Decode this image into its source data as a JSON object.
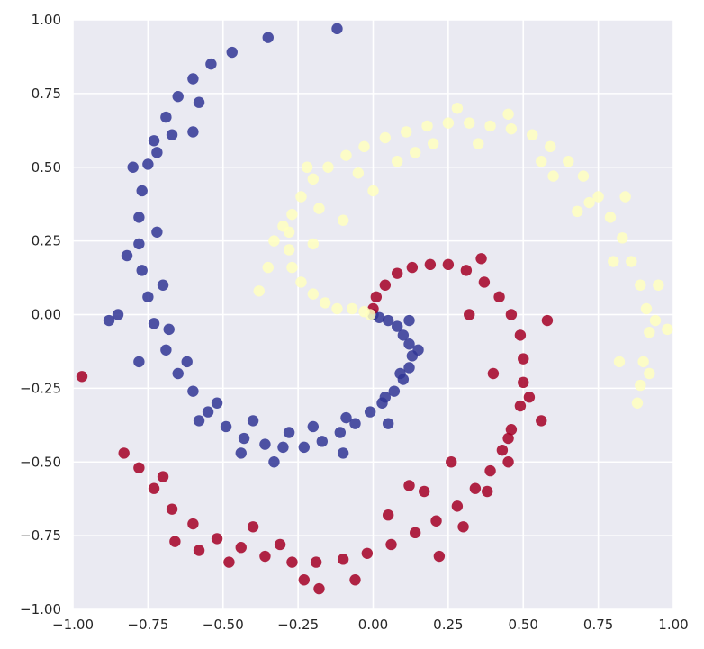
{
  "chart_data": {
    "type": "scatter",
    "title": "",
    "xlabel": "",
    "ylabel": "",
    "xlim": [
      -1.0,
      1.0
    ],
    "ylim": [
      -1.0,
      1.0
    ],
    "grid": true,
    "x_ticks": [
      "−1.00",
      "−0.75",
      "−0.50",
      "−0.25",
      "0.00",
      "0.25",
      "0.50",
      "0.75",
      "1.00"
    ],
    "y_ticks": [
      "1.00",
      "0.75",
      "0.50",
      "0.25",
      "0.00",
      "−0.25",
      "−0.50",
      "−0.75",
      "−1.00"
    ],
    "background_color": "#eaeaf2",
    "series": [
      {
        "color": "#313695",
        "points": [
          [
            0.0,
            0.0
          ],
          [
            0.02,
            -0.01
          ],
          [
            0.05,
            -0.02
          ],
          [
            0.08,
            -0.04
          ],
          [
            0.1,
            -0.07
          ],
          [
            0.12,
            -0.1
          ],
          [
            0.13,
            -0.14
          ],
          [
            0.12,
            -0.18
          ],
          [
            0.1,
            -0.22
          ],
          [
            0.07,
            -0.26
          ],
          [
            0.03,
            -0.3
          ],
          [
            -0.01,
            -0.33
          ],
          [
            -0.06,
            -0.37
          ],
          [
            -0.11,
            -0.4
          ],
          [
            -0.17,
            -0.43
          ],
          [
            -0.23,
            -0.45
          ],
          [
            -0.3,
            -0.45
          ],
          [
            -0.36,
            -0.44
          ],
          [
            -0.43,
            -0.42
          ],
          [
            -0.49,
            -0.38
          ],
          [
            -0.55,
            -0.33
          ],
          [
            -0.6,
            -0.26
          ],
          [
            -0.65,
            -0.2
          ],
          [
            -0.69,
            -0.12
          ],
          [
            -0.73,
            -0.03
          ],
          [
            -0.75,
            0.06
          ],
          [
            -0.77,
            0.15
          ],
          [
            -0.78,
            0.24
          ],
          [
            -0.78,
            0.33
          ],
          [
            -0.77,
            0.42
          ],
          [
            -0.75,
            0.51
          ],
          [
            -0.73,
            0.59
          ],
          [
            -0.69,
            0.67
          ],
          [
            -0.65,
            0.74
          ],
          [
            -0.6,
            0.8
          ],
          [
            -0.54,
            0.85
          ],
          [
            -0.47,
            0.89
          ],
          [
            -0.35,
            0.94
          ],
          [
            -0.12,
            0.97
          ],
          [
            0.15,
            -0.12
          ],
          [
            0.09,
            -0.2
          ],
          [
            0.04,
            -0.28
          ],
          [
            -0.09,
            -0.35
          ],
          [
            -0.2,
            -0.38
          ],
          [
            -0.28,
            -0.4
          ],
          [
            -0.4,
            -0.36
          ],
          [
            -0.52,
            -0.3
          ],
          [
            -0.62,
            -0.16
          ],
          [
            -0.68,
            -0.05
          ],
          [
            -0.7,
            0.1
          ],
          [
            -0.72,
            0.28
          ],
          [
            -0.82,
            0.2
          ],
          [
            -0.85,
            0.0
          ],
          [
            -0.72,
            0.55
          ],
          [
            -0.67,
            0.61
          ],
          [
            -0.8,
            0.5
          ],
          [
            -0.58,
            0.72
          ],
          [
            -0.33,
            -0.5
          ],
          [
            -0.1,
            -0.47
          ],
          [
            0.12,
            -0.02
          ],
          [
            0.05,
            -0.37
          ],
          [
            -0.44,
            -0.47
          ],
          [
            -0.58,
            -0.36
          ],
          [
            -0.78,
            -0.16
          ],
          [
            -0.6,
            0.62
          ],
          [
            -0.88,
            -0.02
          ]
        ]
      },
      {
        "color": "#a50026",
        "points": [
          [
            0.0,
            0.02
          ],
          [
            0.01,
            0.06
          ],
          [
            0.04,
            0.1
          ],
          [
            0.08,
            0.14
          ],
          [
            0.13,
            0.16
          ],
          [
            0.19,
            0.17
          ],
          [
            0.25,
            0.17
          ],
          [
            0.31,
            0.15
          ],
          [
            0.37,
            0.11
          ],
          [
            0.42,
            0.06
          ],
          [
            0.46,
            0.0
          ],
          [
            0.49,
            -0.07
          ],
          [
            0.5,
            -0.15
          ],
          [
            0.5,
            -0.23
          ],
          [
            0.49,
            -0.31
          ],
          [
            0.46,
            -0.39
          ],
          [
            0.43,
            -0.46
          ],
          [
            0.39,
            -0.53
          ],
          [
            0.34,
            -0.59
          ],
          [
            0.28,
            -0.65
          ],
          [
            0.21,
            -0.7
          ],
          [
            0.14,
            -0.74
          ],
          [
            0.06,
            -0.78
          ],
          [
            -0.02,
            -0.81
          ],
          [
            -0.1,
            -0.83
          ],
          [
            -0.19,
            -0.84
          ],
          [
            -0.27,
            -0.84
          ],
          [
            -0.36,
            -0.82
          ],
          [
            -0.44,
            -0.79
          ],
          [
            -0.52,
            -0.76
          ],
          [
            -0.6,
            -0.71
          ],
          [
            -0.67,
            -0.66
          ],
          [
            -0.73,
            -0.59
          ],
          [
            -0.78,
            -0.52
          ],
          [
            -0.83,
            -0.47
          ],
          [
            -0.97,
            -0.21
          ],
          [
            0.56,
            -0.36
          ],
          [
            0.58,
            -0.02
          ],
          [
            0.45,
            -0.42
          ],
          [
            0.38,
            -0.6
          ],
          [
            0.22,
            -0.82
          ],
          [
            0.17,
            -0.6
          ],
          [
            0.05,
            -0.68
          ],
          [
            -0.18,
            -0.93
          ],
          [
            -0.06,
            -0.9
          ],
          [
            -0.31,
            -0.78
          ],
          [
            -0.48,
            -0.84
          ],
          [
            -0.66,
            -0.77
          ],
          [
            -0.7,
            -0.55
          ],
          [
            0.32,
            0.0
          ],
          [
            0.4,
            -0.2
          ],
          [
            0.45,
            -0.5
          ],
          [
            0.26,
            -0.5
          ],
          [
            0.3,
            -0.72
          ],
          [
            0.12,
            -0.58
          ],
          [
            -0.23,
            -0.9
          ],
          [
            -0.4,
            -0.72
          ],
          [
            -0.58,
            -0.8
          ],
          [
            0.52,
            -0.28
          ],
          [
            0.36,
            0.19
          ]
        ]
      },
      {
        "color": "#ffffbf",
        "points": [
          [
            -0.01,
            0.0
          ],
          [
            -0.03,
            0.01
          ],
          [
            -0.07,
            0.02
          ],
          [
            -0.12,
            0.02
          ],
          [
            -0.16,
            0.04
          ],
          [
            -0.2,
            0.07
          ],
          [
            -0.24,
            0.11
          ],
          [
            -0.27,
            0.16
          ],
          [
            -0.28,
            0.22
          ],
          [
            -0.28,
            0.28
          ],
          [
            -0.27,
            0.34
          ],
          [
            -0.24,
            0.4
          ],
          [
            -0.2,
            0.46
          ],
          [
            -0.15,
            0.5
          ],
          [
            -0.09,
            0.54
          ],
          [
            -0.03,
            0.57
          ],
          [
            0.04,
            0.6
          ],
          [
            0.11,
            0.62
          ],
          [
            0.18,
            0.64
          ],
          [
            0.25,
            0.65
          ],
          [
            0.32,
            0.65
          ],
          [
            0.39,
            0.64
          ],
          [
            0.46,
            0.63
          ],
          [
            0.53,
            0.61
          ],
          [
            0.59,
            0.57
          ],
          [
            0.65,
            0.52
          ],
          [
            0.7,
            0.47
          ],
          [
            0.75,
            0.4
          ],
          [
            0.79,
            0.33
          ],
          [
            0.83,
            0.26
          ],
          [
            0.86,
            0.18
          ],
          [
            0.89,
            0.1
          ],
          [
            0.91,
            0.02
          ],
          [
            0.92,
            -0.06
          ],
          [
            0.9,
            -0.16
          ],
          [
            0.89,
            -0.24
          ],
          [
            0.88,
            -0.3
          ],
          [
            0.92,
            -0.2
          ],
          [
            0.98,
            -0.05
          ],
          [
            0.95,
            0.1
          ],
          [
            0.72,
            0.38
          ],
          [
            0.6,
            0.47
          ],
          [
            0.8,
            0.18
          ],
          [
            -0.38,
            0.08
          ],
          [
            -0.35,
            0.16
          ],
          [
            -0.33,
            0.25
          ],
          [
            -0.2,
            0.24
          ],
          [
            -0.1,
            0.32
          ],
          [
            0.0,
            0.42
          ],
          [
            0.14,
            0.55
          ],
          [
            0.28,
            0.7
          ],
          [
            0.45,
            0.68
          ],
          [
            0.56,
            0.52
          ],
          [
            0.68,
            0.35
          ],
          [
            0.84,
            0.4
          ],
          [
            -0.22,
            0.5
          ],
          [
            -0.05,
            0.48
          ],
          [
            -0.3,
            0.3
          ],
          [
            0.94,
            -0.02
          ],
          [
            0.82,
            -0.16
          ],
          [
            0.2,
            0.58
          ],
          [
            0.35,
            0.58
          ],
          [
            0.08,
            0.52
          ],
          [
            -0.18,
            0.36
          ]
        ]
      }
    ]
  }
}
